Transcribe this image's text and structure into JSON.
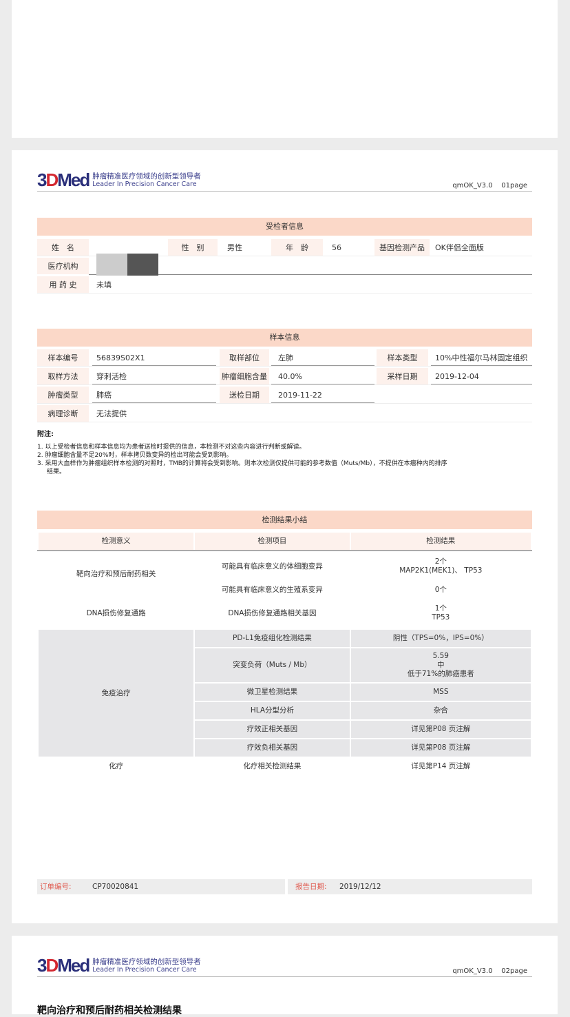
{
  "brand": {
    "logo": "3DMed",
    "slogan_cn": "肿瘤精准医疗领域的创新型领导者",
    "slogan_en": "Leader In Precision Cancer Care"
  },
  "pages": [
    {
      "version": "qmOK_V3.0",
      "page": "01page"
    },
    {
      "version": "qmOK_V3.0",
      "page": "02page"
    }
  ],
  "patient": {
    "title": "受检者信息",
    "name_label": "姓　名",
    "sex_label": "性　别",
    "sex": "男性",
    "age_label": "年　龄",
    "age": "56",
    "product_label": "基因检测产品",
    "product": "OK伴侣全面版",
    "institution_label": "医疗机构",
    "drug_label": "用 药 史",
    "drug": "未填"
  },
  "sample": {
    "title": "样本信息",
    "id_label": "样本编号",
    "id": "56839S02X1",
    "site_label": "取样部位",
    "site": "左肺",
    "type_label": "样本类型",
    "type": "10%中性福尔马林固定组织",
    "method_label": "取样方法",
    "method": "穿刺活检",
    "content_label": "肿瘤细胞含量",
    "content": "40.0%",
    "date_label": "采样日期",
    "date": "2019-12-04",
    "tumor_label": "肿瘤类型",
    "tumor": "肺癌",
    "send_label": "送检日期",
    "send": "2019-11-22",
    "path_label": "病理诊断",
    "path": "无法提供"
  },
  "notes": {
    "title": "附注:",
    "items": [
      "1.  以上受检者信息和样本信息均为患者送检时提供的信息，本检测不对这些内容进行判断或解读。",
      "2.  肿瘤细胞含量不足20%时，样本拷贝数变异的检出可能会受到影响。",
      "3.  采用大血样作为肿瘤组织样本检测的对照时，TMB的计算将会受到影响。则本次检测仅提供可能的参考数值（Muts/Mb），不提供在本瘤种内的排序",
      "结果。"
    ]
  },
  "results": {
    "title": "检测结果小结",
    "headers": [
      "检测意义",
      "检测项目",
      "检测结果"
    ],
    "g1": "靶向治疗和预后耐药相关",
    "g2": "DNA损伤修复通路",
    "g3": "免疫治疗",
    "g4": "化疗",
    "rows": [
      {
        "item": "可能具有临床意义的体细胞变异",
        "r1": "2个",
        "r2": "MAP2K1(MEK1)、 TP53"
      },
      {
        "item": "可能具有临床意义的生殖系变异",
        "r1": "0个"
      },
      {
        "item": "DNA损伤修复通路相关基因",
        "r1": "1个",
        "r2": "TP53"
      },
      {
        "item": "PD-L1免疫组化检测结果",
        "r1": "阴性（TPS=0%，IPS=0%）"
      },
      {
        "item": "突变负荷（Muts / Mb）",
        "r1": "5.59",
        "r2": "中",
        "r3": "低于71%的肺癌患者"
      },
      {
        "item": "微卫星检测结果",
        "r1": "MSS"
      },
      {
        "item": "HLA分型分析",
        "r1": "杂合"
      },
      {
        "item": "疗效正相关基因",
        "r1": "详见第P08 页注解"
      },
      {
        "item": "疗效负相关基因",
        "r1": "详见第P08 页注解"
      },
      {
        "item": "化疗相关检测结果",
        "r1": "详见第P14 页注解"
      }
    ]
  },
  "footer": {
    "order_label": "订单编号:",
    "order": "CP70020841",
    "report_label": "报告日期:",
    "report": "2019/12/12"
  },
  "next_section_title": "靶向治疗和预后耐药相关检测结果"
}
